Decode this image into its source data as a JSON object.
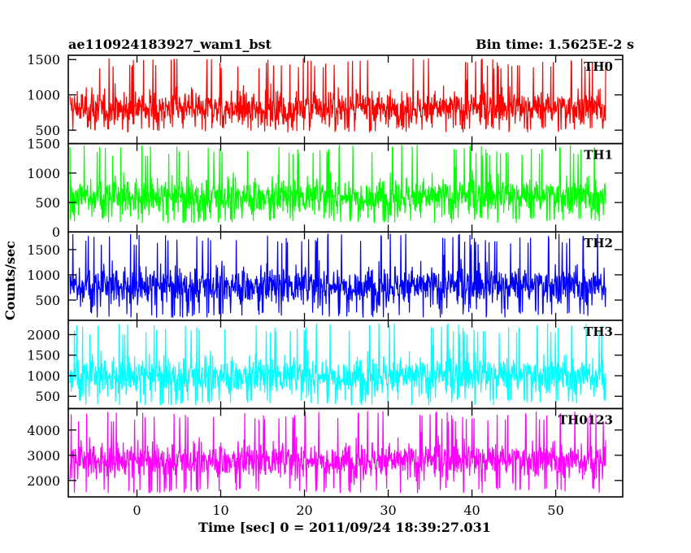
{
  "chart_data": {
    "type": "line",
    "title_left": "ae110924183927_wam1_bst",
    "title_right": "Bin time: 1.5625E-2 s",
    "ylabel": "Counts/sec",
    "xlabel": "Time [sec] 0 = 2011/09/24 18:39:27.031",
    "xlim": [
      -8.2,
      58.0
    ],
    "data_x_range": [
      -8.0,
      56.0
    ],
    "x_ticks": [
      0,
      10,
      20,
      30,
      40,
      50
    ],
    "x_tick_labels": [
      "0",
      "10",
      "20",
      "30",
      "40",
      "50"
    ],
    "grid": false,
    "panels": [
      {
        "name": "TH0",
        "color": "#ff0000",
        "ylim": [
          310,
          1560
        ],
        "yticks": [
          500,
          1000,
          1500
        ],
        "ytick_labels": [
          "500",
          "1000",
          "1500"
        ],
        "mean": 810,
        "spread": 150,
        "peak": 1520,
        "low": 470
      },
      {
        "name": "TH1",
        "color": "#00ff00",
        "ylim": [
          0,
          1500
        ],
        "yticks": [
          0,
          500,
          1000,
          1500
        ],
        "ytick_labels": [
          "0",
          "500",
          "1000",
          "1500"
        ],
        "mean": 600,
        "spread": 190,
        "peak": 1480,
        "low": 150
      },
      {
        "name": "TH2",
        "color": "#0000ff",
        "ylim": [
          100,
          1850
        ],
        "yticks": [
          500,
          1000,
          1500
        ],
        "ytick_labels": [
          "500",
          "1000",
          "1500"
        ],
        "mean": 780,
        "spread": 230,
        "peak": 1820,
        "low": 150
      },
      {
        "name": "TH3",
        "color": "#00ffff",
        "ylim": [
          200,
          2350
        ],
        "yticks": [
          500,
          1000,
          1500,
          2000
        ],
        "ytick_labels": [
          "500",
          "1000",
          "1500",
          "2000"
        ],
        "mean": 1000,
        "spread": 280,
        "peak": 2280,
        "low": 280
      },
      {
        "name": "TH0123",
        "color": "#ff00ff",
        "ylim": [
          1350,
          4850
        ],
        "yticks": [
          2000,
          3000,
          4000
        ],
        "ytick_labels": [
          "2000",
          "3000",
          "4000"
        ],
        "mean": 2800,
        "spread": 420,
        "peak": 4750,
        "low": 1500
      }
    ]
  }
}
